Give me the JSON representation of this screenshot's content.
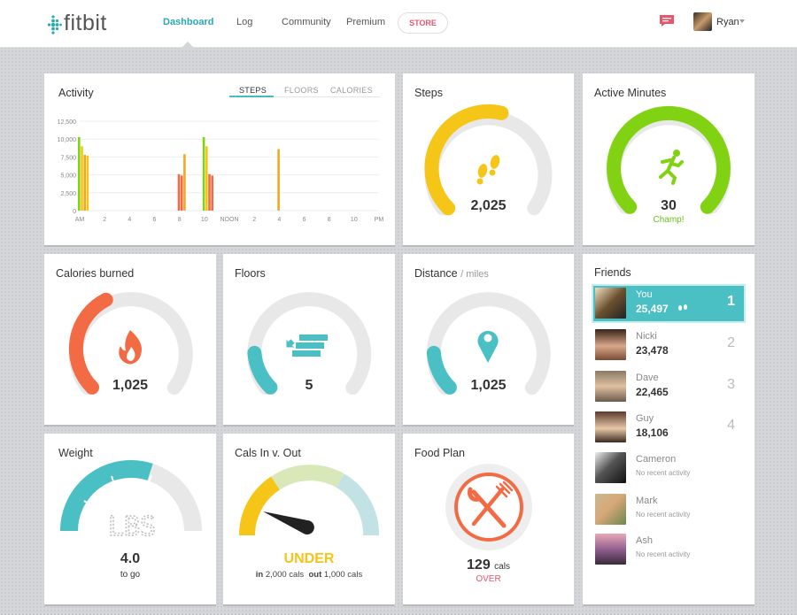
{
  "brand": {
    "name": "fitbit"
  },
  "nav": {
    "dashboard": "Dashboard",
    "log": "Log",
    "community": "Community",
    "premium": "Premium",
    "store": "STORE"
  },
  "user": {
    "name": "Ryan"
  },
  "colors": {
    "teal": "#4bc0c4",
    "yellow": "#f5c518",
    "green": "#82d214",
    "orange": "#f26b45",
    "pink": "#e8566e"
  },
  "icons": [
    "message-icon",
    "footprints-icon",
    "runner-icon",
    "flame-icon",
    "stairs-icon",
    "map-pin-icon",
    "fork-knife-icon"
  ],
  "activity": {
    "title": "Activity",
    "tabs": [
      "STEPS",
      "FLOORS",
      "CALORIES"
    ],
    "selected_tab": "STEPS"
  },
  "chart_data": {
    "type": "bar",
    "title": "Activity",
    "yticks": [
      "12,500",
      "10,000",
      "7,500",
      "5,000",
      "2,500",
      "0"
    ],
    "xticks": [
      "AM",
      "2",
      "4",
      "6",
      "8",
      "10",
      "NOON",
      "2",
      "4",
      "6",
      "8",
      "10",
      "PM"
    ],
    "ylim": [
      0,
      12500
    ],
    "grid": true,
    "bars": [
      {
        "slot": 0,
        "values": [
          10300,
          9000,
          7800,
          7700
        ],
        "colors": [
          "#82d214",
          "#f5c518",
          "#f5a623",
          "#f5c518"
        ]
      },
      {
        "slot": 8,
        "values": [
          5100,
          4900,
          7900
        ],
        "colors": [
          "#f26b45",
          "#f26b45",
          "#f5a623"
        ]
      },
      {
        "slot": 10,
        "values": [
          10300,
          9000,
          5100,
          4900
        ],
        "colors": [
          "#82d214",
          "#f5c518",
          "#f26b45",
          "#f26b45"
        ]
      },
      {
        "slot": 16,
        "values": [
          8600
        ],
        "colors": [
          "#f5a623"
        ]
      }
    ]
  },
  "steps": {
    "title": "Steps",
    "value": "2,025",
    "progress": 0.55
  },
  "active_minutes": {
    "title": "Active Minutes",
    "value": "30",
    "label": "Champ!",
    "progress": 1.0
  },
  "calories": {
    "title": "Calories burned",
    "value": "1,025",
    "progress": 0.4
  },
  "floors": {
    "title": "Floors",
    "value": "5",
    "progress": 0.15
  },
  "distance": {
    "title": "Distance",
    "unit": "/ miles",
    "value": "1,025",
    "progress": 0.15
  },
  "weight": {
    "title": "Weight",
    "unit_display": "LBS",
    "value": "4.0",
    "label": "to go",
    "progress": 0.6
  },
  "cals_in_out": {
    "title": "Cals In v. Out",
    "status": "UNDER",
    "in_label": "in",
    "in_value": "2,000 cals",
    "out_label": "out",
    "out_value": "1,000 cals"
  },
  "food_plan": {
    "title": "Food Plan",
    "value": "129",
    "unit": "cals",
    "status": "OVER"
  },
  "friends": {
    "title": "Friends",
    "list": [
      {
        "name": "You",
        "steps": "25,497",
        "rank": "1"
      },
      {
        "name": "Nicki",
        "steps": "23,478",
        "rank": "2"
      },
      {
        "name": "Dave",
        "steps": "22,465",
        "rank": "3"
      },
      {
        "name": "Guy",
        "steps": "18,106",
        "rank": "4"
      },
      {
        "name": "Cameron",
        "status": "No recent activity"
      },
      {
        "name": "Mark",
        "status": "No recent activity"
      },
      {
        "name": "Ash",
        "status": "No recent activity"
      }
    ]
  }
}
